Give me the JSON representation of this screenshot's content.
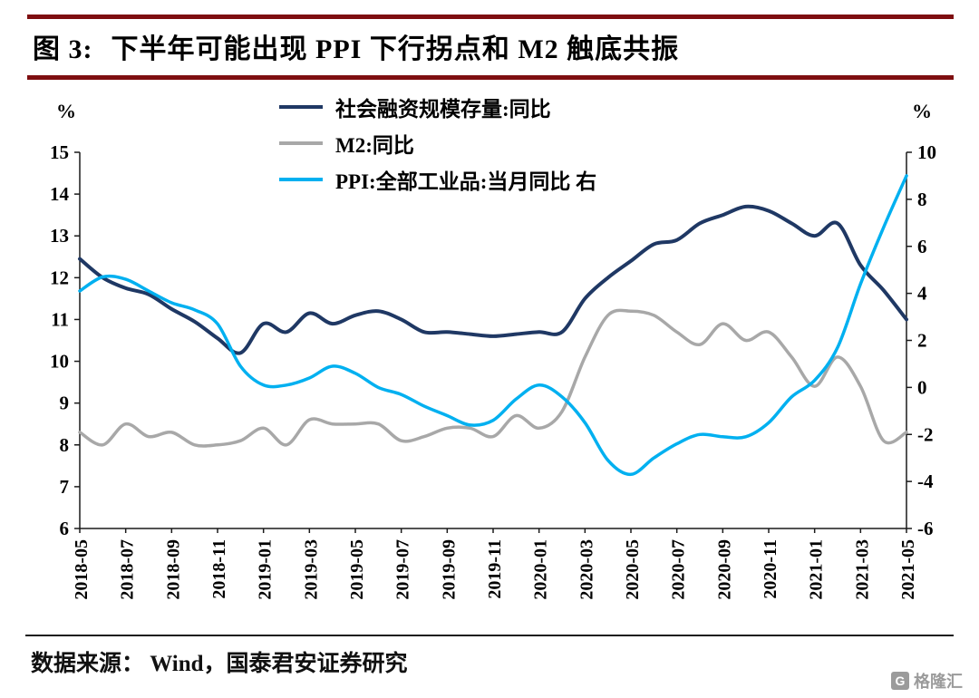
{
  "title": {
    "prefix": "图 3:",
    "text": "下半年可能出现 PPI 下行拐点和 M2 触底共振"
  },
  "footer": {
    "source": "数据来源：  Wind，国泰君安证券研究"
  },
  "watermark": {
    "icon_letter": "G",
    "text": "格隆汇"
  },
  "theme": {
    "title_rule_color": "#7E0E10",
    "axis_color": "#1a1a1a"
  },
  "chart_data": {
    "type": "line",
    "title": "下半年可能出现 PPI 下行拐点和 M2 触底共振",
    "grid": false,
    "legend_position": "top-center",
    "x": [
      "2018-05",
      "2018-06",
      "2018-07",
      "2018-08",
      "2018-09",
      "2018-10",
      "2018-11",
      "2018-12",
      "2019-01",
      "2019-02",
      "2019-03",
      "2019-04",
      "2019-05",
      "2019-06",
      "2019-07",
      "2019-08",
      "2019-09",
      "2019-10",
      "2019-11",
      "2019-12",
      "2020-01",
      "2020-02",
      "2020-03",
      "2020-04",
      "2020-05",
      "2020-06",
      "2020-07",
      "2020-08",
      "2020-09",
      "2020-10",
      "2020-11",
      "2020-12",
      "2021-01",
      "2021-02",
      "2021-03",
      "2021-04",
      "2021-05"
    ],
    "x_tick_every": 2,
    "left_axis": {
      "min": 6,
      "max": 15,
      "step": 1,
      "unit": "%"
    },
    "right_axis": {
      "min": -6,
      "max": 10,
      "step": 2,
      "unit": "%"
    },
    "series": [
      {
        "name": "社会融资规模存量:同比",
        "axis": "left",
        "color": "#1F3864",
        "width": 4,
        "values": [
          12.45,
          12.0,
          11.75,
          11.6,
          11.25,
          10.95,
          10.55,
          10.2,
          10.9,
          10.7,
          11.15,
          10.9,
          11.1,
          11.2,
          11.0,
          10.7,
          10.7,
          10.65,
          10.6,
          10.65,
          10.7,
          10.7,
          11.5,
          12.0,
          12.4,
          12.8,
          12.9,
          13.3,
          13.5,
          13.7,
          13.6,
          13.3,
          13.0,
          13.3,
          12.3,
          11.7,
          11.0
        ]
      },
      {
        "name": "M2:同比",
        "axis": "left",
        "color": "#A8A8A8",
        "width": 3.5,
        "values": [
          8.3,
          8.0,
          8.5,
          8.2,
          8.3,
          8.0,
          8.0,
          8.1,
          8.4,
          8.0,
          8.6,
          8.5,
          8.5,
          8.5,
          8.1,
          8.2,
          8.4,
          8.4,
          8.2,
          8.7,
          8.4,
          8.8,
          10.1,
          11.1,
          11.2,
          11.1,
          10.7,
          10.4,
          10.9,
          10.5,
          10.7,
          10.1,
          9.4,
          10.1,
          9.4,
          8.1,
          8.3
        ]
      },
      {
        "name": "PPI:全部工业品:当月同比 右",
        "axis": "right",
        "color": "#00B0F0",
        "width": 3.5,
        "values": [
          4.1,
          4.7,
          4.6,
          4.1,
          3.6,
          3.3,
          2.7,
          0.9,
          0.1,
          0.1,
          0.4,
          0.9,
          0.6,
          0.0,
          -0.3,
          -0.8,
          -1.2,
          -1.6,
          -1.4,
          -0.5,
          0.1,
          -0.4,
          -1.5,
          -3.1,
          -3.7,
          -3.0,
          -2.4,
          -2.0,
          -2.1,
          -2.1,
          -1.5,
          -0.4,
          0.3,
          1.7,
          4.4,
          6.8,
          9.0
        ]
      }
    ]
  }
}
